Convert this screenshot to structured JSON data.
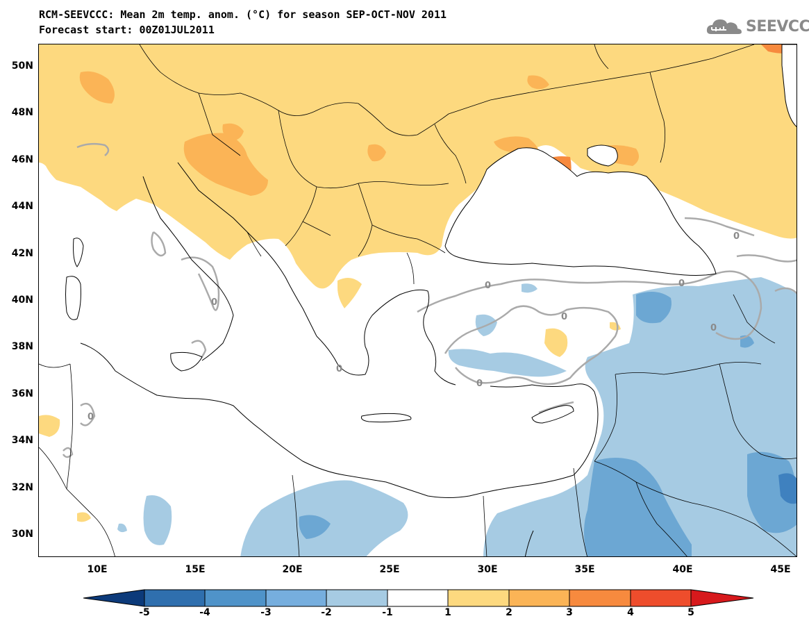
{
  "header": {
    "title": "RCM-SEEVCCC: Mean 2m temp. anom. (°C) for season SEP-OCT-NOV 2011",
    "subtitle": "Forecast start: 00Z01JUL2011",
    "logo_text": "SEEVCCC",
    "logo_icon": "cloud-logo-icon"
  },
  "map": {
    "lat_labels": [
      "50N",
      "48N",
      "46N",
      "44N",
      "42N",
      "40N",
      "38N",
      "36N",
      "34N",
      "32N",
      "30N"
    ],
    "lon_labels": [
      "10E",
      "15E",
      "20E",
      "25E",
      "30E",
      "35E",
      "40E",
      "45E"
    ],
    "contour_label": "0",
    "colors": {
      "warm_1_2": "#fdd97f",
      "warm_2_3": "#fbb456",
      "warm_3_4": "#f78a3e",
      "warm_4_5": "#ee4d2c",
      "cool_1_2": "#a6cbe3",
      "cool_2_3": "#6ca7d3",
      "cool_3_4": "#3f81bf",
      "zero_contour": "#aaaaaa"
    }
  },
  "colorbar": {
    "labels": [
      "-5",
      "-4",
      "-3",
      "-2",
      "-1",
      "1",
      "2",
      "3",
      "4",
      "5"
    ],
    "colors": [
      "#0c3a7a",
      "#2f6fae",
      "#4f93c9",
      "#76aede",
      "#a6cbe3",
      "#ffffff",
      "#fdd97f",
      "#fbb456",
      "#f78a3e",
      "#ee4d2c",
      "#d7191c"
    ]
  }
}
